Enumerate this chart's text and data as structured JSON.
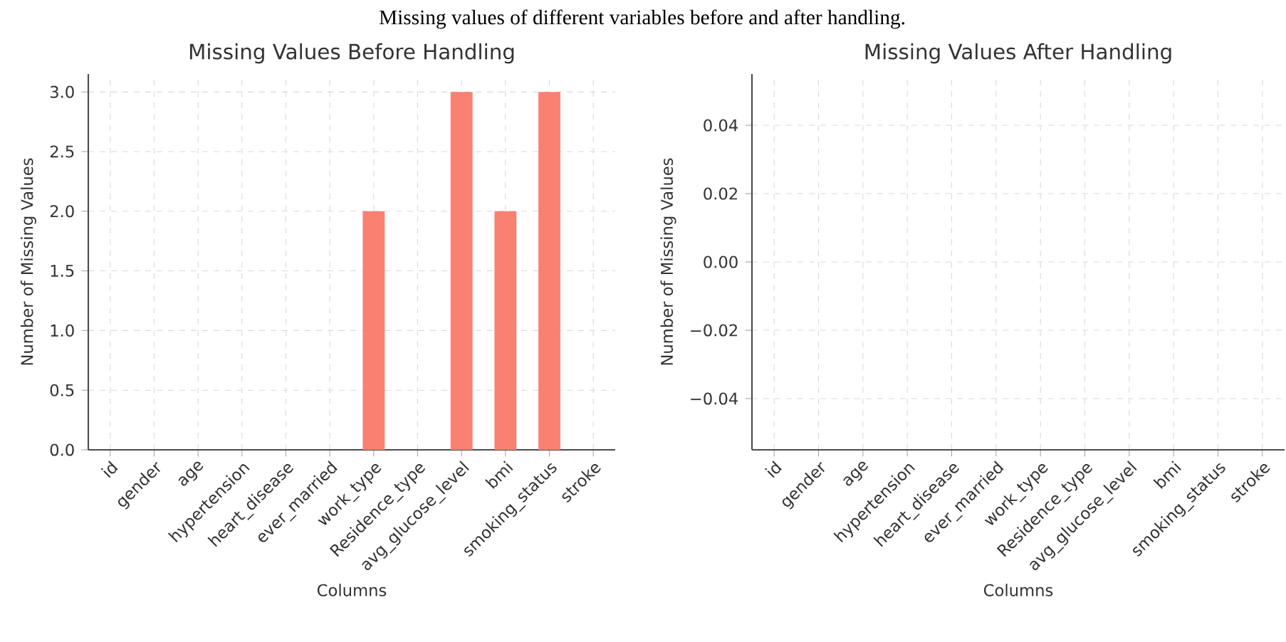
{
  "chart_data": [
    {
      "type": "bar",
      "title": "Missing Values Before Handling",
      "xlabel": "Columns",
      "ylabel": "Number of Missing Values",
      "annotations": [
        "Missing values of different variables before and after handling."
      ],
      "categories": [
        "id",
        "gender",
        "age",
        "hypertension",
        "heart_disease",
        "ever_married",
        "work_type",
        "Residence_type",
        "avg_glucose_level",
        "bmi",
        "smoking_status",
        "stroke"
      ],
      "values": [
        0,
        0,
        0,
        0,
        0,
        0,
        2,
        0,
        3,
        2,
        3,
        0
      ],
      "color": "#fa8072",
      "ylim": [
        0,
        3.15
      ],
      "yticks": [
        {
          "value": 0,
          "label": "0.0"
        },
        {
          "value": 0.5,
          "label": "0.5"
        },
        {
          "value": 1,
          "label": "1.0"
        },
        {
          "value": 1.5,
          "label": "1.5"
        },
        {
          "value": 2,
          "label": "2.0"
        },
        {
          "value": 2.5,
          "label": "2.5"
        },
        {
          "value": 3,
          "label": "3.0"
        }
      ],
      "grid": true
    },
    {
      "type": "bar",
      "title": "Missing Values After Handling",
      "xlabel": "Columns",
      "ylabel": "Number of Missing Values",
      "categories": [
        "id",
        "gender",
        "age",
        "hypertension",
        "heart_disease",
        "ever_married",
        "work_type",
        "Residence_type",
        "avg_glucose_level",
        "bmi",
        "smoking_status",
        "stroke"
      ],
      "values": [
        0,
        0,
        0,
        0,
        0,
        0,
        0,
        0,
        0,
        0,
        0,
        0
      ],
      "color": "#fa8072",
      "ylim": [
        -0.055,
        0.055
      ],
      "yticks": [
        {
          "value": -0.04,
          "label": "−0.04"
        },
        {
          "value": -0.02,
          "label": "−0.02"
        },
        {
          "value": 0,
          "label": "0.00"
        },
        {
          "value": 0.02,
          "label": "0.02"
        },
        {
          "value": 0.04,
          "label": "0.04"
        }
      ],
      "grid": true
    }
  ]
}
